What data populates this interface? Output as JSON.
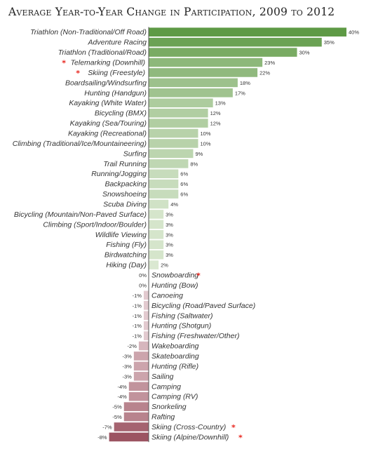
{
  "chart_data": {
    "type": "bar",
    "orientation": "horizontal",
    "title": "Average Year-to-Year Change in Participation, 2009 to 2012",
    "value_suffix": "%",
    "xlim": [
      -8,
      40
    ],
    "grid": false,
    "legend": "none",
    "star_color": "#e8261e",
    "positive_color_range": [
      "#e9f1e2",
      "#5e9a45"
    ],
    "negative_color_range": [
      "#f0e2e5",
      "#9c5462"
    ],
    "categories": [
      "Triathlon (Non-Traditional/Off Road)",
      "Adventure Racing",
      "Triathlon (Traditional/Road)",
      "Telemarking (Downhill)",
      "Skiing (Freestyle)",
      "Boardsailing/Windsurfing",
      "Hunting (Handgun)",
      "Kayaking (White Water)",
      "Bicycling (BMX)",
      "Kayaking (Sea/Touring)",
      "Kayaking (Recreational)",
      "Climbing (Traditional/Ice/Mountaineering)",
      "Surfing",
      "Trail Running",
      "Running/Jogging",
      "Backpacking",
      "Snowshoeing",
      "Scuba Diving",
      "Bicycling (Mountain/Non-Paved Surface)",
      "Climbing (Sport/Indoor/Boulder)",
      "Wildlife Viewing",
      "Fishing (Fly)",
      "Birdwatching",
      "Hiking (Day)",
      "Snowboarding",
      "Hunting (Bow)",
      "Canoeing",
      "Bicycling (Road/Paved Surface)",
      "Fishing (Saltwater)",
      "Hunting (Shotgun)",
      "Fishing (Freshwater/Other)",
      "Wakeboarding",
      "Skateboarding",
      "Hunting (Rifle)",
      "Sailing",
      "Camping",
      "Camping (RV)",
      "Snorkeling",
      "Rafting",
      "Skiing (Cross-Country)",
      "Skiing (Alpine/Downhill)"
    ],
    "values": [
      40,
      35,
      30,
      23,
      22,
      18,
      17,
      13,
      12,
      12,
      10,
      10,
      9,
      8,
      6,
      6,
      6,
      4,
      3,
      3,
      3,
      3,
      3,
      2,
      0,
      0,
      -1,
      -1,
      -1,
      -1,
      -1,
      -2,
      -3,
      -3,
      -3,
      -4,
      -4,
      -5,
      -5,
      -7,
      -8
    ],
    "starred": [
      "Telemarking (Downhill)",
      "Skiing (Freestyle)",
      "Snowboarding",
      "Skiing (Cross-Country)",
      "Skiing (Alpine/Downhill)"
    ]
  }
}
